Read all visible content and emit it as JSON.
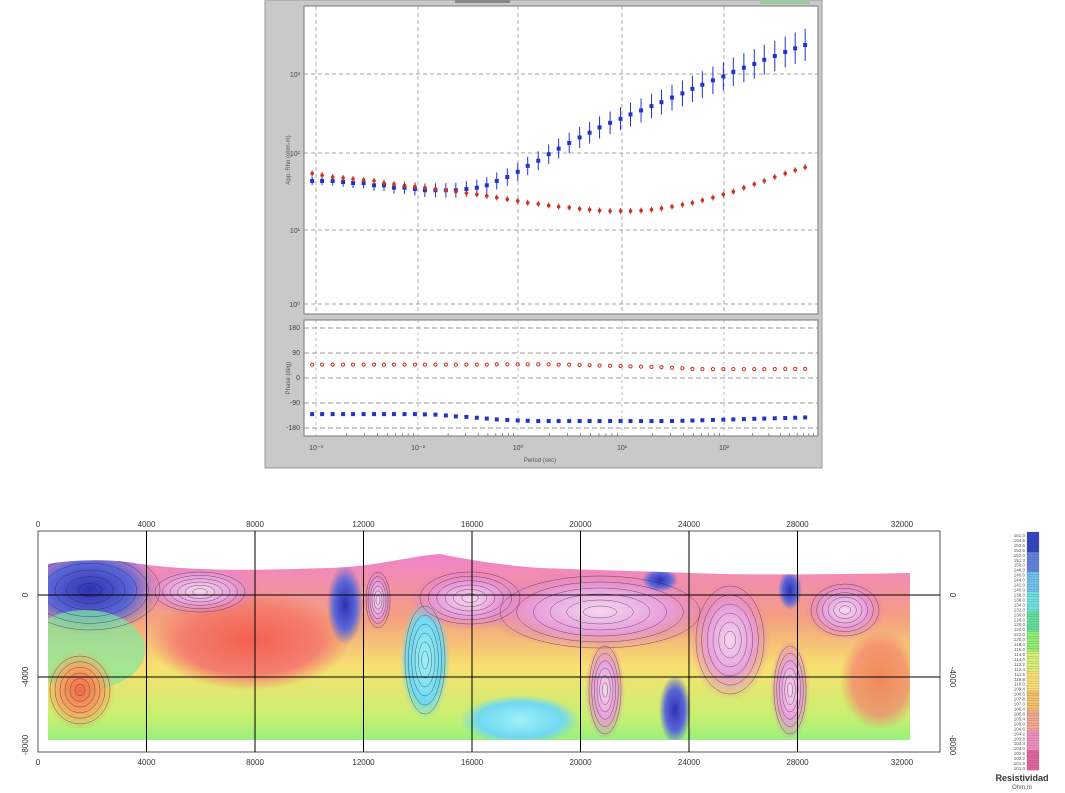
{
  "chart_data": [
    {
      "type": "scatter",
      "panel": "apparent-resistivity",
      "xscale": "log",
      "yscale": "log",
      "xlabel": "Period (sec)",
      "ylabel": "App. Rho (ohm-m)",
      "x_tick_labels": [
        "10⁻³",
        "10⁻²",
        "10⁰",
        "10¹",
        "10²"
      ],
      "y_tick_labels": [
        "10³",
        "10²",
        "10¹",
        "10⁰"
      ],
      "grid": true,
      "series": [
        {
          "color": "#2233cc",
          "marker": "square-errorbar",
          "x": [
            0.0012,
            0.0015,
            0.0019,
            0.0024,
            0.003,
            0.0038,
            0.0048,
            0.006,
            0.0075,
            0.0095,
            0.012,
            0.015,
            0.019,
            0.024,
            0.03,
            0.038,
            0.048,
            0.06,
            0.075,
            0.095,
            0.12,
            0.15,
            0.19,
            0.24,
            0.3,
            0.38,
            0.48,
            0.6,
            0.75,
            0.95,
            1.2,
            1.5,
            1.9,
            2.4,
            3,
            3.8,
            4.8,
            6,
            7.5,
            9.5,
            12,
            15,
            19,
            24,
            30,
            38,
            48,
            60,
            75
          ],
          "y": [
            18,
            18,
            18,
            17.5,
            17,
            17,
            16,
            16,
            15,
            15,
            14.5,
            14,
            14,
            14,
            14,
            14.5,
            15,
            16,
            18,
            20,
            23,
            27,
            31,
            37,
            43,
            50,
            58,
            66,
            76,
            86,
            96,
            108,
            120,
            135,
            150,
            170,
            190,
            215,
            240,
            270,
            300,
            340,
            380,
            420,
            470,
            520,
            580,
            640,
            700
          ]
        },
        {
          "color": "#cc3322",
          "marker": "dot-errorbar",
          "x": [
            0.0012,
            0.0015,
            0.0019,
            0.0024,
            0.003,
            0.0038,
            0.0048,
            0.006,
            0.0075,
            0.0095,
            0.012,
            0.015,
            0.019,
            0.024,
            0.03,
            0.038,
            0.048,
            0.06,
            0.075,
            0.095,
            0.12,
            0.15,
            0.19,
            0.24,
            0.3,
            0.38,
            0.48,
            0.6,
            0.75,
            0.95,
            1.2,
            1.5,
            1.9,
            2.4,
            3,
            3.8,
            4.8,
            6,
            7.5,
            9.5,
            12,
            15,
            19,
            24,
            30,
            38,
            48,
            60,
            75
          ],
          "y": [
            22,
            21,
            20,
            19.5,
            19,
            18.5,
            18,
            17,
            16.5,
            16,
            15.5,
            15,
            14.5,
            14,
            13.5,
            13,
            12.5,
            12,
            11.5,
            11,
            10.5,
            10,
            9.7,
            9.3,
            9,
            8.8,
            8.5,
            8.3,
            8.1,
            8,
            8,
            8,
            8.1,
            8.3,
            8.6,
            9,
            9.5,
            10,
            10.7,
            11.5,
            12.5,
            13.5,
            15,
            16.5,
            18,
            20,
            22,
            24,
            26
          ]
        }
      ]
    },
    {
      "type": "scatter",
      "panel": "phase",
      "xscale": "log",
      "xlabel": "Period (sec)",
      "ylabel": "Phase (deg)",
      "x_tick_labels": [
        "10⁻³",
        "10⁻²",
        "10⁰",
        "10¹",
        "10²"
      ],
      "y_tick_labels": [
        "180",
        "90",
        "0",
        "-90",
        "-180"
      ],
      "ylim": [
        -180,
        180
      ],
      "grid": true,
      "series": [
        {
          "color": "#cc3322",
          "marker": "dot",
          "x": [
            0.0012,
            0.0015,
            0.0019,
            0.0024,
            0.003,
            0.0038,
            0.0048,
            0.006,
            0.0075,
            0.0095,
            0.012,
            0.015,
            0.019,
            0.024,
            0.03,
            0.038,
            0.048,
            0.06,
            0.075,
            0.095,
            0.12,
            0.15,
            0.19,
            0.24,
            0.3,
            0.38,
            0.48,
            0.6,
            0.75,
            0.95,
            1.2,
            1.5,
            1.9,
            2.4,
            3,
            3.8,
            4.8,
            6,
            7.5,
            9.5,
            12,
            15,
            19,
            24,
            30,
            38,
            48,
            60,
            75
          ],
          "y": [
            48,
            48,
            48,
            48,
            48,
            48,
            48,
            48,
            48,
            48,
            48,
            48,
            48,
            48,
            48,
            48,
            48,
            48,
            49,
            49,
            49,
            49,
            49,
            49,
            48,
            48,
            47,
            46,
            45,
            44,
            43,
            42,
            41,
            40,
            39,
            37,
            35,
            33,
            32,
            32,
            32,
            32,
            32,
            32,
            32,
            32,
            33,
            33,
            33
          ]
        },
        {
          "color": "#2233cc",
          "marker": "square",
          "x": [
            0.0012,
            0.0015,
            0.0019,
            0.0024,
            0.003,
            0.0038,
            0.0048,
            0.006,
            0.0075,
            0.0095,
            0.012,
            0.015,
            0.019,
            0.024,
            0.03,
            0.038,
            0.048,
            0.06,
            0.075,
            0.095,
            0.12,
            0.15,
            0.19,
            0.24,
            0.3,
            0.38,
            0.48,
            0.6,
            0.75,
            0.95,
            1.2,
            1.5,
            1.9,
            2.4,
            3,
            3.8,
            4.8,
            6,
            7.5,
            9.5,
            12,
            15,
            19,
            24,
            30,
            38,
            48,
            60,
            75
          ],
          "y": [
            -130,
            -130,
            -130,
            -130,
            -130,
            -130,
            -130,
            -130,
            -130,
            -130,
            -130,
            -131,
            -132,
            -135,
            -138,
            -140,
            -143,
            -146,
            -149,
            -151,
            -153,
            -154,
            -155,
            -155,
            -155,
            -155,
            -155,
            -155,
            -155,
            -155,
            -155,
            -155,
            -155,
            -155,
            -155,
            -155,
            -154,
            -153,
            -152,
            -151,
            -150,
            -149,
            -148,
            -147,
            -146,
            -145,
            -144,
            -143,
            -142
          ]
        }
      ]
    },
    {
      "type": "heatmap",
      "panel": "resistivity-section",
      "x_ticks": [
        0,
        4000,
        8000,
        12000,
        16000,
        20000,
        24000,
        28000,
        32000
      ],
      "xlim": [
        0,
        33000
      ],
      "y_ticks": [
        "0",
        "-4000",
        "-8000"
      ],
      "ylim": [
        1800,
        -6000
      ],
      "legend_title": "Resistividad",
      "legend_unit": "Ohm.m",
      "legend_values": [
        "101.0",
        "101.4",
        "101.8",
        "102.0",
        "102.2",
        "102.4",
        "102.6",
        "102.8",
        "103.0",
        "103.2",
        "103.4",
        "103.6",
        "103.8",
        "104.0",
        "104.2",
        "104.4",
        "104.6",
        "104.8",
        "105.0",
        "105.2",
        "105.4",
        "105.6",
        "105.8",
        "106.0",
        "106.4",
        "106.8",
        "107.0",
        "107.4",
        "107.8",
        "108.2",
        "108.6",
        "109.0",
        "109.4",
        "109.8",
        "110.0",
        "110.4",
        "110.8",
        "111.2",
        "111.6",
        "112.0",
        "112.4",
        "112.8",
        "113.2",
        "113.6",
        "114.0",
        "114.4",
        "114.8",
        "115.2",
        "116.0",
        "117.0",
        "118.0",
        "119.0",
        "120.0",
        "121.0",
        "122.0",
        "123.0",
        "124.0",
        "125.0",
        "126.0",
        "127.0",
        "128.0",
        "129.0",
        "130.0",
        "131.0",
        "132.0",
        "133.0",
        "134.0",
        "135.0",
        "136.0",
        "137.0",
        "138.0",
        "139.0",
        "140.0",
        "141.0",
        "142.0",
        "143.0",
        "144.0",
        "145.0",
        "146.0",
        "147.0",
        "148.0",
        "149.0",
        "150.0",
        "151.0",
        "151.3",
        "151.6",
        "152.0",
        "152.3",
        "152.6",
        "153.0",
        "153.5",
        "154.0",
        "154.5",
        "155.0",
        "161.0",
        "161.3"
      ],
      "color_scale": [
        "#e4609c",
        "#f08cc0",
        "#f4a890",
        "#f6c06a",
        "#f8e070",
        "#d8f070",
        "#8ff070",
        "#5fe09a",
        "#6fe0e0",
        "#70c0f0",
        "#6080e0",
        "#3040c0"
      ]
    }
  ]
}
